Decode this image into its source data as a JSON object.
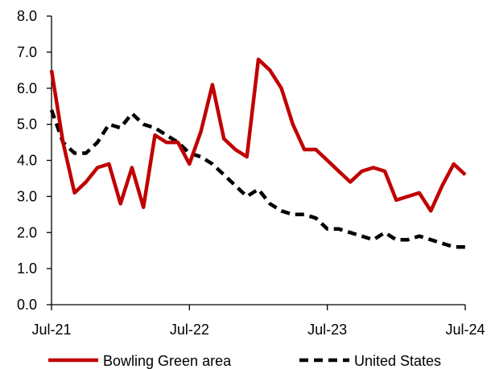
{
  "chart_data": {
    "type": "line",
    "title": "",
    "xlabel": "",
    "ylabel": "",
    "x_ticks": [
      "Jul-21",
      "Jul-22",
      "Jul-23",
      "Jul-24"
    ],
    "ylim": [
      0,
      8
    ],
    "y_ticks": [
      "0.0",
      "1.0",
      "2.0",
      "3.0",
      "4.0",
      "5.0",
      "6.0",
      "7.0",
      "8.0"
    ],
    "grid": false,
    "legend_position": "bottom",
    "x": [
      "Jul-21",
      "Aug-21",
      "Sep-21",
      "Oct-21",
      "Nov-21",
      "Dec-21",
      "Jan-22",
      "Feb-22",
      "Mar-22",
      "Apr-22",
      "May-22",
      "Jun-22",
      "Jul-22",
      "Aug-22",
      "Sep-22",
      "Oct-22",
      "Nov-22",
      "Dec-22",
      "Jan-23",
      "Feb-23",
      "Mar-23",
      "Apr-23",
      "May-23",
      "Jun-23",
      "Jul-23",
      "Aug-23",
      "Sep-23",
      "Oct-23",
      "Nov-23",
      "Dec-23",
      "Jan-24",
      "Feb-24",
      "Mar-24",
      "Apr-24",
      "May-24",
      "Jun-24",
      "Jul-24"
    ],
    "series": [
      {
        "name": "Bowling Green area",
        "color": "#c00000",
        "style": "solid",
        "values": [
          6.5,
          4.5,
          3.1,
          3.4,
          3.8,
          3.9,
          2.8,
          3.8,
          2.7,
          4.7,
          4.5,
          4.5,
          3.9,
          4.8,
          6.1,
          4.6,
          4.3,
          4.1,
          6.8,
          6.5,
          6.0,
          5.0,
          4.3,
          4.3,
          4.0,
          3.7,
          3.4,
          3.7,
          3.8,
          3.7,
          2.9,
          3.0,
          3.1,
          2.6,
          3.3,
          3.9,
          3.6
        ]
      },
      {
        "name": "United States",
        "color": "#000000",
        "style": "dashed",
        "values": [
          5.4,
          4.5,
          4.2,
          4.2,
          4.5,
          5.0,
          4.9,
          5.3,
          5.0,
          4.9,
          4.7,
          4.5,
          4.2,
          4.1,
          3.9,
          3.6,
          3.3,
          3.0,
          3.2,
          2.8,
          2.6,
          2.5,
          2.5,
          2.4,
          2.1,
          2.1,
          2.0,
          1.9,
          1.8,
          2.0,
          1.8,
          1.8,
          1.9,
          1.8,
          1.7,
          1.6,
          1.6
        ]
      }
    ]
  }
}
